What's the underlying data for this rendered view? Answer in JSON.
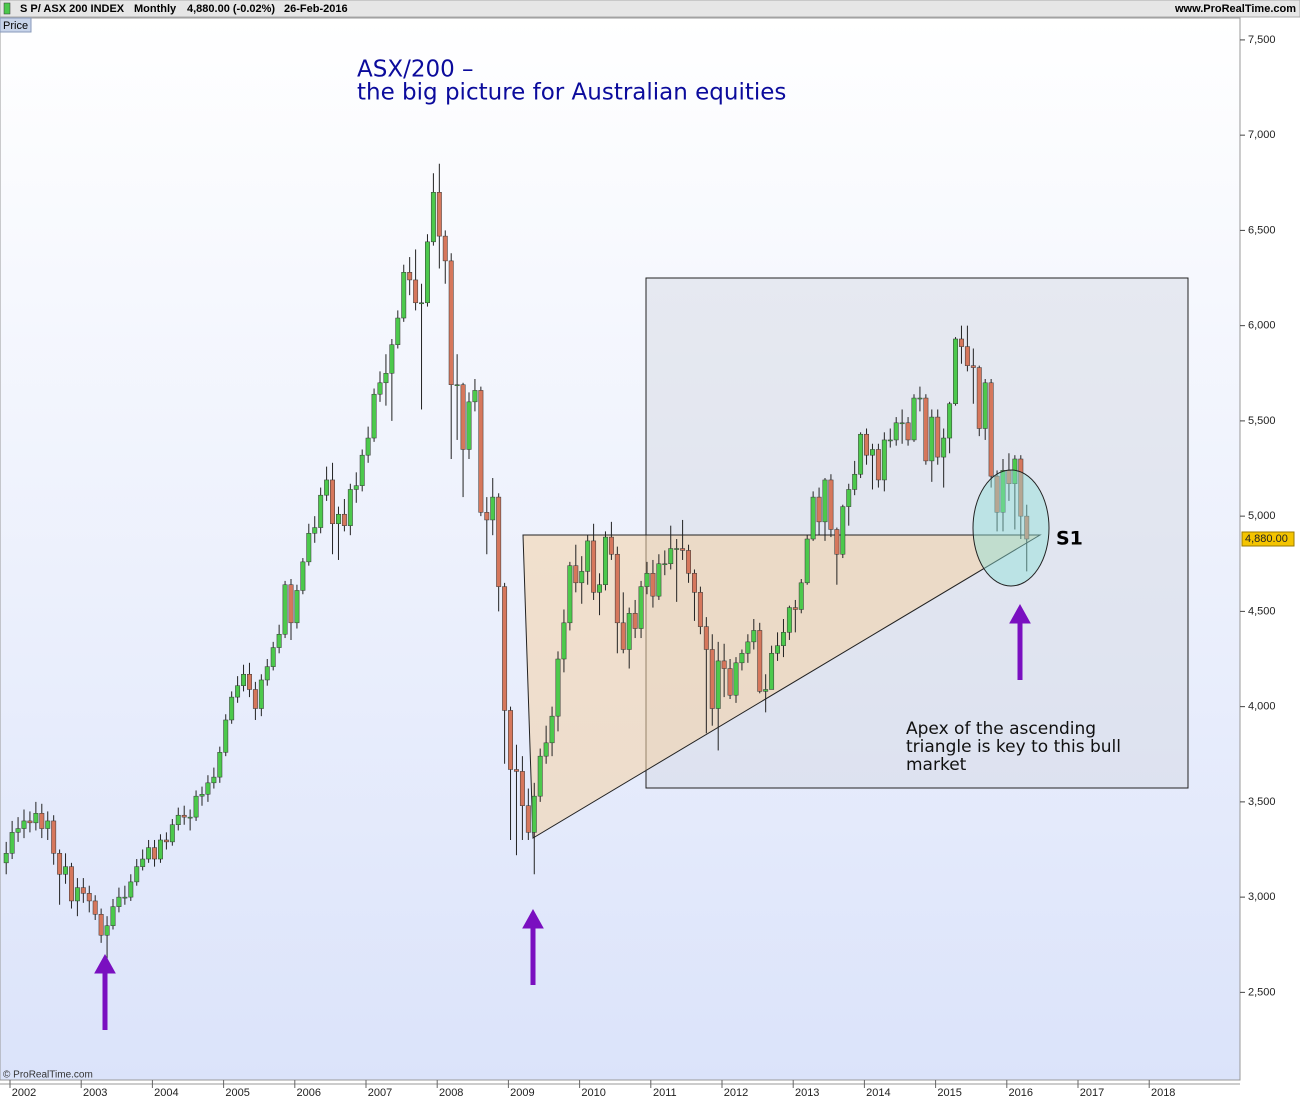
{
  "chart_data": {
    "type": "candlestick",
    "header": {
      "instrument": "S P/ ASX 200 INDEX",
      "period": "Monthly",
      "quote": "4,880.00 (-0.02%)",
      "date": "26-Feb-2016",
      "site": "www.ProRealTime.com",
      "panel": "Price",
      "copyright": "© ProRealTime.com"
    },
    "title": [
      "ASX/200 –",
      "the big picture for Australian equities"
    ],
    "annotations": {
      "note": [
        "Apex of the ascending",
        "triangle is key to this bull",
        "market"
      ],
      "s1": "S1"
    },
    "last_price": {
      "value": 4880,
      "label": "4,880.00"
    },
    "ylim": [
      2040,
      7615
    ],
    "yticks": [
      {
        "value": 2500,
        "label": "2,500"
      },
      {
        "value": 3000,
        "label": "3,000"
      },
      {
        "value": 3500,
        "label": "3,500"
      },
      {
        "value": 4000,
        "label": "4,000"
      },
      {
        "value": 4500,
        "label": "4,500"
      },
      {
        "value": 5000,
        "label": "5,000"
      },
      {
        "value": 5500,
        "label": "5,500"
      },
      {
        "value": 6000,
        "label": "6,000"
      },
      {
        "value": 6500,
        "label": "6,500"
      },
      {
        "value": 7000,
        "label": "7,000"
      },
      {
        "value": 7500,
        "label": "7,500"
      }
    ],
    "up_color": "#4cc94c",
    "down_color": "#d6775c",
    "categories": [
      null,
      null,
      null,
      "2002",
      null,
      null,
      null,
      null,
      null,
      null,
      null,
      null,
      null,
      null,
      null,
      "2003",
      null,
      null,
      null,
      null,
      null,
      null,
      null,
      null,
      null,
      null,
      null,
      "2004",
      null,
      null,
      null,
      null,
      null,
      null,
      null,
      null,
      null,
      null,
      null,
      "2005",
      null,
      null,
      null,
      null,
      null,
      null,
      null,
      null,
      null,
      null,
      null,
      "2006",
      null,
      null,
      null,
      null,
      null,
      null,
      null,
      null,
      null,
      null,
      null,
      "2007",
      null,
      null,
      null,
      null,
      null,
      null,
      null,
      null,
      null,
      null,
      null,
      "2008",
      null,
      null,
      null,
      null,
      null,
      null,
      null,
      null,
      null,
      null,
      null,
      "2009",
      null,
      null,
      null,
      null,
      null,
      null,
      null,
      null,
      null,
      null,
      null,
      "2010",
      null,
      null,
      null,
      null,
      null,
      null,
      null,
      null,
      null,
      null,
      null,
      "2011",
      null,
      null,
      null,
      null,
      null,
      null,
      null,
      null,
      null,
      null,
      null,
      "2012",
      null,
      null,
      null,
      null,
      null,
      null,
      null,
      null,
      null,
      null,
      null,
      "2013",
      null,
      null,
      null,
      null,
      null,
      null,
      null,
      null,
      null,
      null,
      null,
      "2014",
      null,
      null,
      null,
      null,
      null,
      null,
      null,
      null,
      null,
      null,
      null,
      "2015",
      null,
      null,
      null,
      null,
      null,
      null,
      null,
      null,
      null,
      null,
      null,
      "2016",
      null,
      null,
      null,
      null,
      null,
      null,
      null,
      null,
      null,
      null,
      null,
      "2017",
      null,
      null,
      null,
      null,
      null,
      null,
      null,
      null,
      null,
      null,
      null,
      "2018",
      null,
      null,
      null,
      null,
      null,
      null,
      null,
      null,
      null,
      null,
      null
    ],
    "open": [
      3180,
      3230,
      3340,
      3360,
      3400,
      3390,
      3440,
      3360,
      3400,
      3230,
      3120,
      3160,
      2980,
      3050,
      3020,
      2980,
      2910,
      2800,
      2850,
      2950,
      3000,
      3000,
      3080,
      3160,
      3200,
      3260,
      3200,
      3300,
      3290,
      3380,
      3430,
      3420,
      3420,
      3530,
      3540,
      3600,
      3630,
      3760,
      3930,
      4050,
      4110,
      4170,
      4090,
      3990,
      4140,
      4210,
      4310,
      4380,
      4640,
      4440,
      4610,
      4760,
      4910,
      4940,
      5110,
      5190,
      4960,
      5010,
      4950,
      5140,
      5160,
      5320,
      5410,
      5640,
      5700,
      5750,
      5900,
      6040,
      6280,
      6240,
      6120,
      6120,
      6440,
      6700,
      6470,
      6340,
      5690,
      5690,
      5350,
      5600,
      5660,
      5020,
      4980,
      5100,
      4630,
      3980,
      3670,
      3660,
      3480,
      3340,
      3530,
      3740,
      3810,
      3950,
      4250,
      4440,
      4740,
      4650,
      4710,
      4870,
      4600,
      4640,
      4890,
      4800,
      4440,
      4300,
      4490,
      4410,
      4630,
      4700,
      4580,
      4750,
      4750,
      4830,
      4830,
      4820,
      4700,
      4600,
      4420,
      4300,
      3990,
      4240,
      4200,
      4060,
      4230,
      4280,
      4340,
      4400,
      4080,
      4090,
      4280,
      4320,
      4390,
      4520,
      4510,
      4650,
      4880,
      5100,
      4970,
      5190,
      4930,
      4800,
      5050,
      5140,
      5220,
      5430,
      5320,
      5350,
      5190,
      5400,
      5400,
      5490,
      5490,
      5400,
      5620,
      5620,
      5290,
      5520,
      5310,
      5410,
      5590,
      5930,
      5890,
      5790,
      5780,
      5460,
      5700,
      5210,
      5020,
      5240,
      5170,
      5300,
      5000,
      null,
      null,
      null,
      null,
      null,
      null,
      null,
      null,
      null,
      null,
      null,
      null,
      null,
      null,
      null,
      null,
      null,
      null,
      null,
      null,
      null,
      null,
      null,
      null,
      null,
      null,
      null,
      null,
      null,
      null,
      null,
      null,
      null,
      null
    ],
    "high": [
      3290,
      3400,
      3420,
      3460,
      3450,
      3500,
      3490,
      3450,
      3430,
      3250,
      3230,
      3180,
      3100,
      3100,
      3060,
      3010,
      2940,
      2900,
      2990,
      3050,
      3060,
      3120,
      3200,
      3250,
      3300,
      3300,
      3330,
      3340,
      3410,
      3470,
      3480,
      3460,
      3560,
      3580,
      3640,
      3680,
      3790,
      3960,
      4080,
      4160,
      4220,
      4230,
      4130,
      4170,
      4250,
      4340,
      4430,
      4660,
      4670,
      4640,
      4780,
      4960,
      5000,
      5150,
      5260,
      5280,
      5050,
      5090,
      5170,
      5230,
      5350,
      5470,
      5670,
      5760,
      5850,
      5930,
      6080,
      6320,
      6360,
      6400,
      6220,
      6480,
      6800,
      6850,
      6500,
      6380,
      5850,
      5700,
      5650,
      5720,
      5680,
      5100,
      5200,
      5120,
      4650,
      4000,
      3800,
      3740,
      3570,
      3600,
      3780,
      3900,
      4000,
      4290,
      4510,
      4760,
      4850,
      4790,
      4900,
      4960,
      4700,
      4920,
      4970,
      4840,
      4600,
      4520,
      4560,
      4660,
      4760,
      4770,
      4800,
      4820,
      4950,
      4880,
      4980,
      4850,
      4720,
      4630,
      4470,
      4380,
      4340,
      4330,
      4250,
      4260,
      4300,
      4380,
      4460,
      4440,
      4170,
      4320,
      4390,
      4460,
      4530,
      4560,
      4670,
      4900,
      5130,
      5150,
      5200,
      5220,
      4940,
      5060,
      5170,
      5290,
      5440,
      5460,
      5380,
      5380,
      5440,
      5460,
      5520,
      5560,
      5520,
      5640,
      5680,
      5640,
      5560,
      5560,
      5460,
      5600,
      5940,
      6000,
      6000,
      5880,
      5790,
      5720,
      5720,
      5240,
      5300,
      5330,
      5320,
      5320,
      5060,
      null,
      null,
      null,
      null,
      null,
      null,
      null,
      null,
      null,
      null,
      null,
      null,
      null,
      null,
      null,
      null,
      null,
      null,
      null,
      null,
      null,
      null,
      null,
      null,
      null,
      null,
      null,
      null,
      null,
      null,
      null,
      null,
      null,
      null
    ],
    "low": [
      3120,
      3200,
      3290,
      3310,
      3340,
      3350,
      3310,
      3300,
      3170,
      2960,
      3070,
      2940,
      2900,
      2970,
      2920,
      2880,
      2760,
      2670,
      2830,
      2920,
      2960,
      2980,
      3060,
      3140,
      3180,
      3160,
      3180,
      3250,
      3270,
      3350,
      3380,
      3350,
      3400,
      3480,
      3500,
      3570,
      3600,
      3740,
      3910,
      4020,
      4080,
      4050,
      3930,
      3950,
      4110,
      4190,
      4280,
      4360,
      4350,
      4410,
      4590,
      4740,
      4860,
      4910,
      5080,
      4800,
      4770,
      4920,
      4900,
      5070,
      5130,
      5280,
      5390,
      5600,
      5580,
      5500,
      5880,
      6020,
      6160,
      6080,
      5560,
      6100,
      6420,
      6300,
      6220,
      5300,
      5400,
      5100,
      5300,
      5550,
      5000,
      4800,
      4900,
      4500,
      3700,
      3300,
      3220,
      3300,
      3300,
      3120,
      3500,
      3700,
      3740,
      3870,
      4180,
      4400,
      4600,
      4540,
      4640,
      4560,
      4480,
      4610,
      4770,
      4280,
      4280,
      4200,
      4360,
      4360,
      4590,
      4520,
      4560,
      4690,
      4720,
      4550,
      4770,
      4650,
      4450,
      4380,
      3860,
      3900,
      3770,
      4050,
      4040,
      4020,
      4190,
      4230,
      4300,
      4070,
      3970,
      4090,
      4240,
      4260,
      4350,
      4390,
      4490,
      4640,
      4870,
      4900,
      4870,
      4890,
      4640,
      4780,
      4950,
      5110,
      5200,
      5270,
      5140,
      5150,
      5130,
      5360,
      5370,
      5380,
      5370,
      5390,
      5550,
      5270,
      5180,
      5270,
      5150,
      5330,
      5580,
      5800,
      5760,
      5590,
      5420,
      5400,
      5150,
      4920,
      4920,
      5080,
      4930,
      4880,
      4710,
      null,
      null,
      null,
      null,
      null,
      null,
      null,
      null,
      null,
      null,
      null,
      null,
      null,
      null,
      null,
      null,
      null,
      null,
      null,
      null,
      null,
      null,
      null,
      null,
      null,
      null,
      null,
      null,
      null,
      null,
      null,
      null,
      null,
      null
    ],
    "close": [
      3230,
      3340,
      3360,
      3400,
      3390,
      3440,
      3360,
      3400,
      3230,
      3120,
      3160,
      2980,
      3050,
      3020,
      2980,
      2910,
      2800,
      2850,
      2950,
      3000,
      3000,
      3080,
      3160,
      3200,
      3260,
      3200,
      3300,
      3290,
      3380,
      3430,
      3420,
      3420,
      3530,
      3540,
      3600,
      3630,
      3760,
      3930,
      4050,
      4110,
      4170,
      4090,
      3990,
      4140,
      4210,
      4310,
      4380,
      4640,
      4440,
      4610,
      4760,
      4910,
      4940,
      5110,
      5190,
      4960,
      5010,
      4950,
      5140,
      5160,
      5320,
      5410,
      5640,
      5700,
      5750,
      5900,
      6040,
      6280,
      6240,
      6120,
      6120,
      6440,
      6700,
      6470,
      6340,
      5690,
      5690,
      5350,
      5600,
      5660,
      5020,
      4980,
      5100,
      4630,
      3980,
      3670,
      3660,
      3480,
      3340,
      3530,
      3740,
      3810,
      3950,
      4250,
      4440,
      4740,
      4650,
      4710,
      4870,
      4600,
      4640,
      4890,
      4800,
      4440,
      4300,
      4490,
      4410,
      4630,
      4700,
      4580,
      4750,
      4750,
      4830,
      4830,
      4820,
      4700,
      4600,
      4420,
      4300,
      3990,
      4240,
      4200,
      4060,
      4230,
      4280,
      4340,
      4400,
      4080,
      4090,
      4280,
      4320,
      4390,
      4520,
      4510,
      4650,
      4880,
      5100,
      4970,
      5190,
      4930,
      4800,
      5050,
      5140,
      5220,
      5430,
      5320,
      5350,
      5190,
      5400,
      5400,
      5490,
      5490,
      5400,
      5620,
      5620,
      5290,
      5520,
      5310,
      5410,
      5590,
      5930,
      5890,
      5790,
      5780,
      5460,
      5700,
      5210,
      5020,
      5240,
      5170,
      5300,
      5000,
      4880,
      null,
      null,
      null,
      null,
      null,
      null,
      null,
      null,
      null,
      null,
      null,
      null,
      null,
      null,
      null,
      null,
      null,
      null,
      null,
      null,
      null,
      null,
      null,
      null,
      null,
      null,
      null,
      null,
      null,
      null,
      null,
      null,
      null,
      null
    ]
  }
}
